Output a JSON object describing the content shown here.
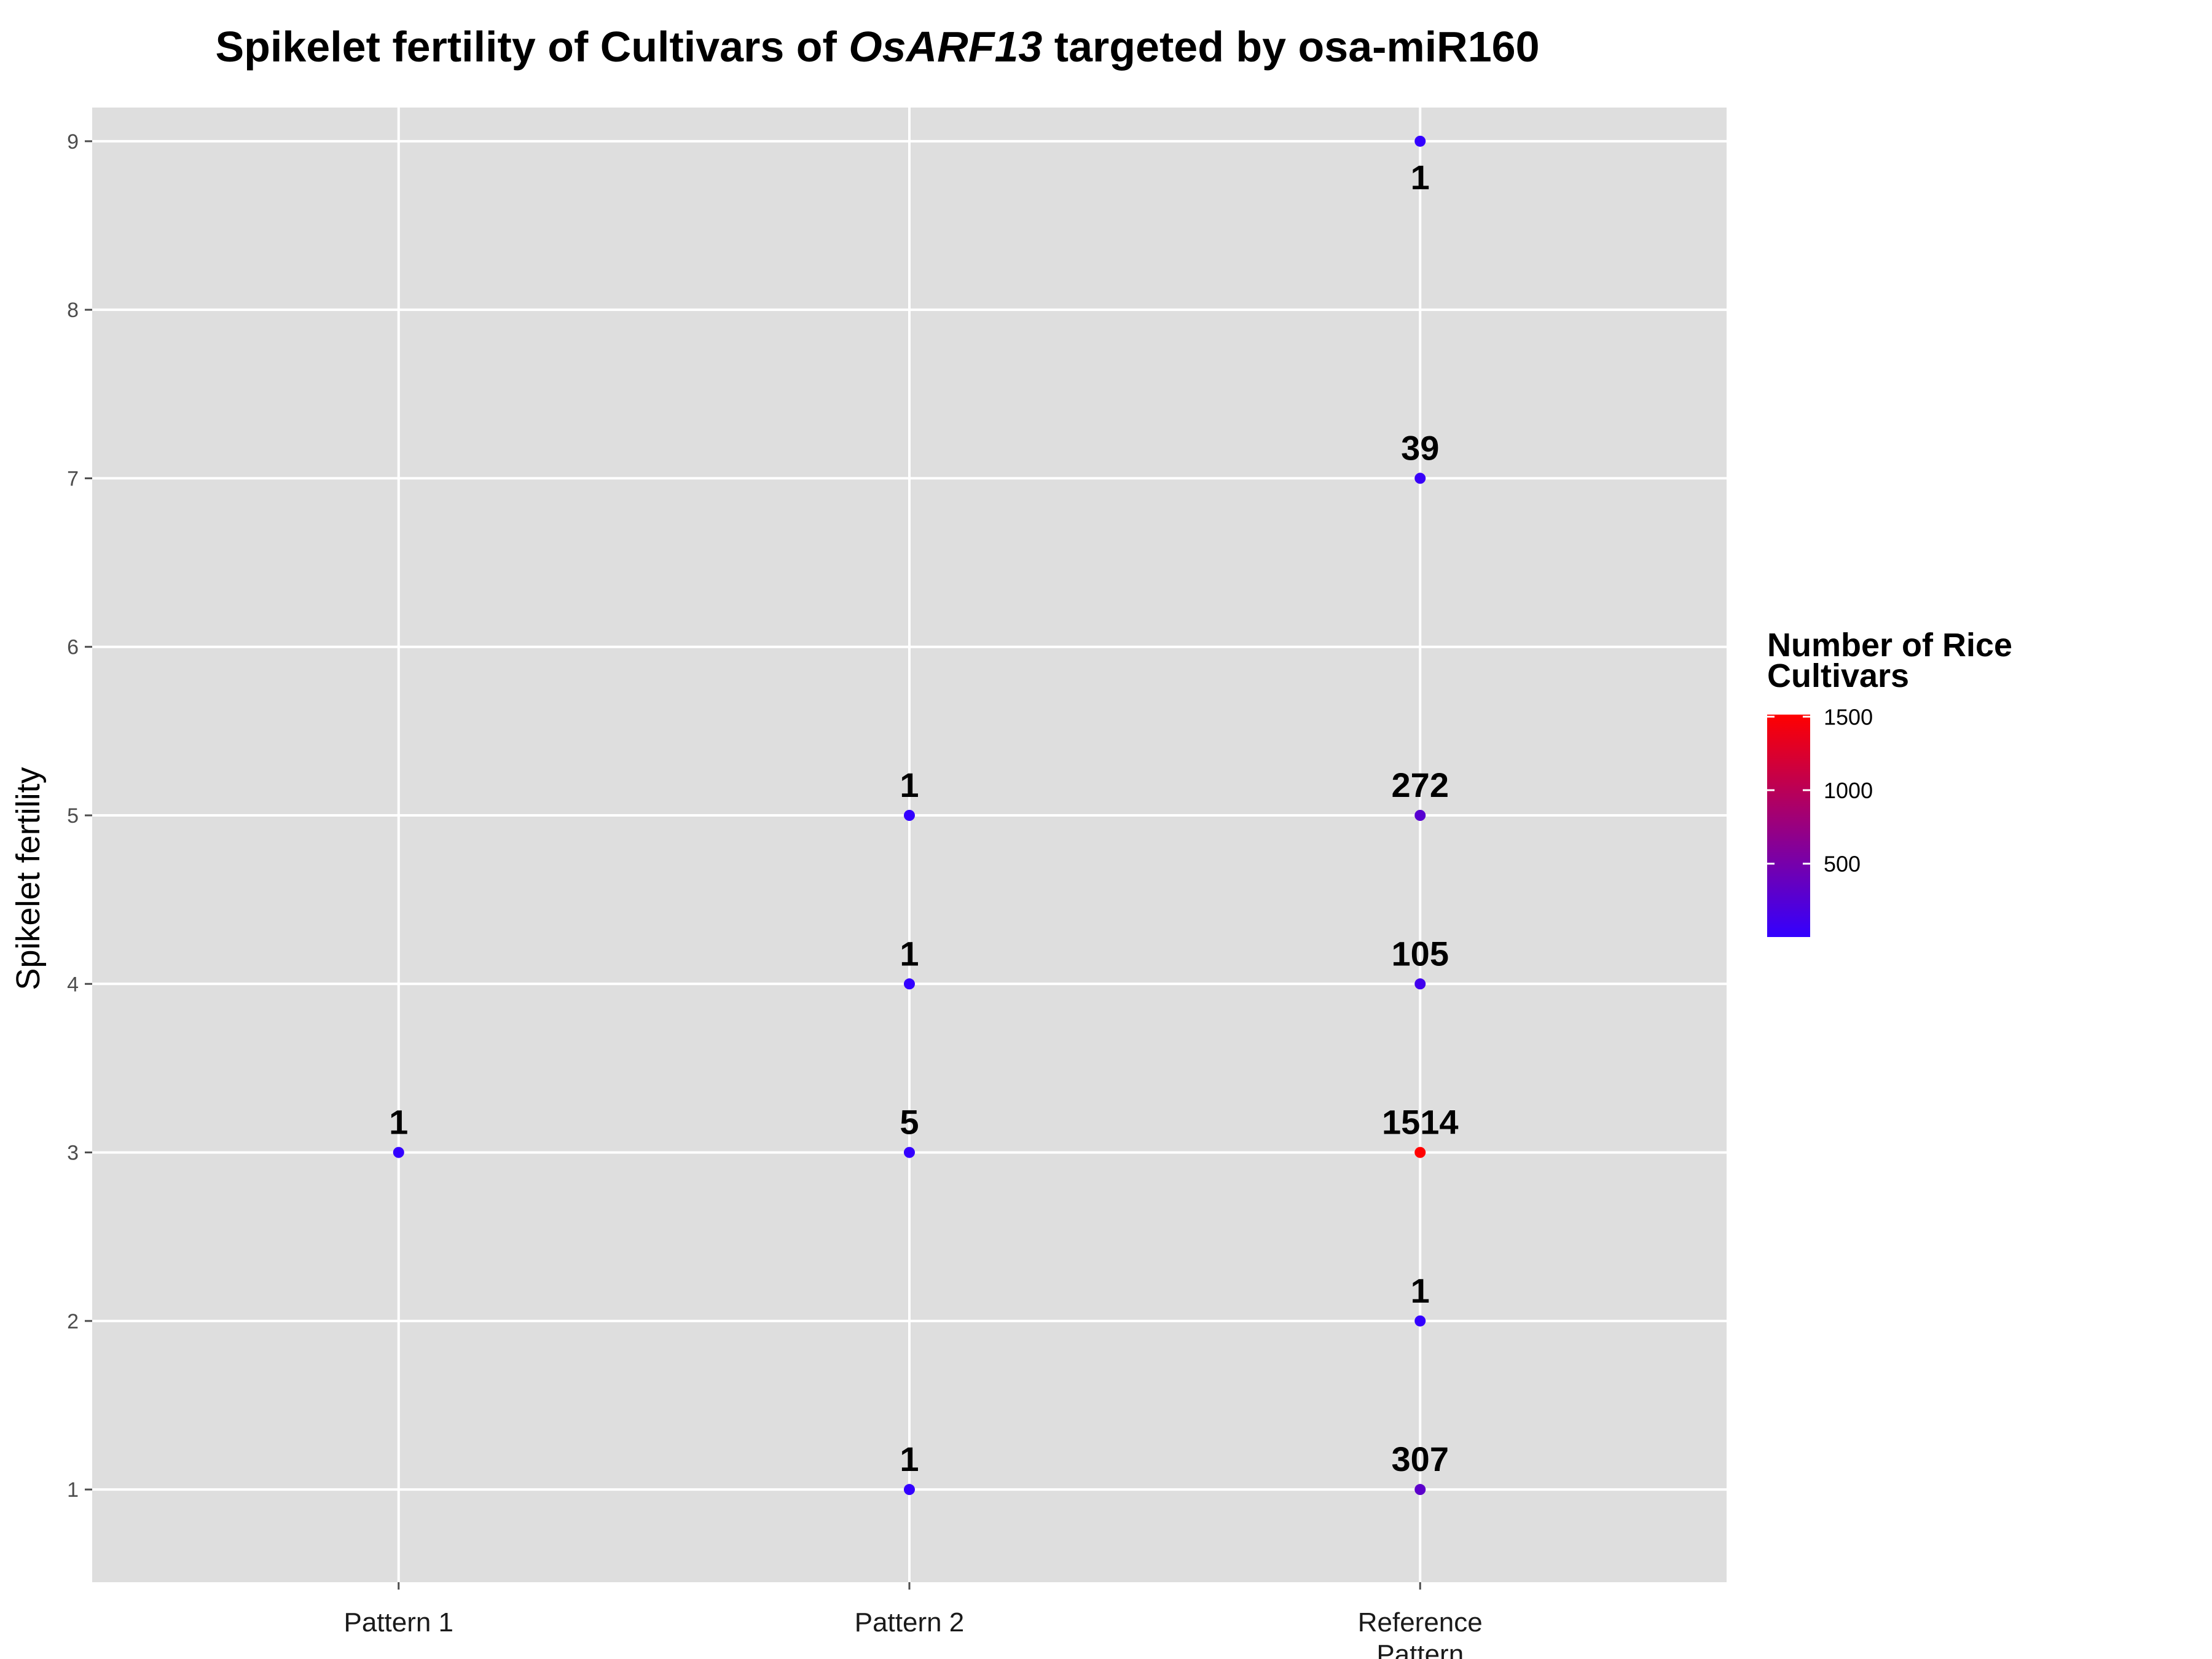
{
  "chart_data": {
    "type": "scatter",
    "title": {
      "prefix": "Spikelet fertility of Cultivars of ",
      "italic": "OsARF13",
      "suffix": " targeted by osa-miR160"
    },
    "xlabel": "",
    "ylabel": "Spikelet fertility",
    "categories": [
      [
        "Pattern 1"
      ],
      [
        "Pattern 2"
      ],
      [
        "Reference",
        "Pattern"
      ]
    ],
    "yticks": [
      1,
      2,
      3,
      4,
      5,
      6,
      7,
      8,
      9
    ],
    "ylim": [
      0.45,
      9.2
    ],
    "grid": true,
    "points": [
      {
        "x": 0,
        "y": 3,
        "count": 1
      },
      {
        "x": 1,
        "y": 1,
        "count": 1
      },
      {
        "x": 1,
        "y": 3,
        "count": 5
      },
      {
        "x": 1,
        "y": 4,
        "count": 1
      },
      {
        "x": 1,
        "y": 5,
        "count": 1
      },
      {
        "x": 2,
        "y": 1,
        "count": 307
      },
      {
        "x": 2,
        "y": 2,
        "count": 1
      },
      {
        "x": 2,
        "y": 3,
        "count": 1514
      },
      {
        "x": 2,
        "y": 4,
        "count": 105
      },
      {
        "x": 2,
        "y": 5,
        "count": 272
      },
      {
        "x": 2,
        "y": 7,
        "count": 39
      },
      {
        "x": 2,
        "y": 9,
        "count": 1
      }
    ],
    "legend": {
      "title": [
        "Number of Rice",
        "Cultivars"
      ],
      "ticks": [
        500,
        1000,
        1500
      ],
      "range": [
        1,
        1514
      ],
      "low_color": "#3300ff",
      "high_color": "#ff0000",
      "position": "right"
    },
    "colors": {
      "panel": "#dedede",
      "grid": "#ffffff"
    }
  }
}
